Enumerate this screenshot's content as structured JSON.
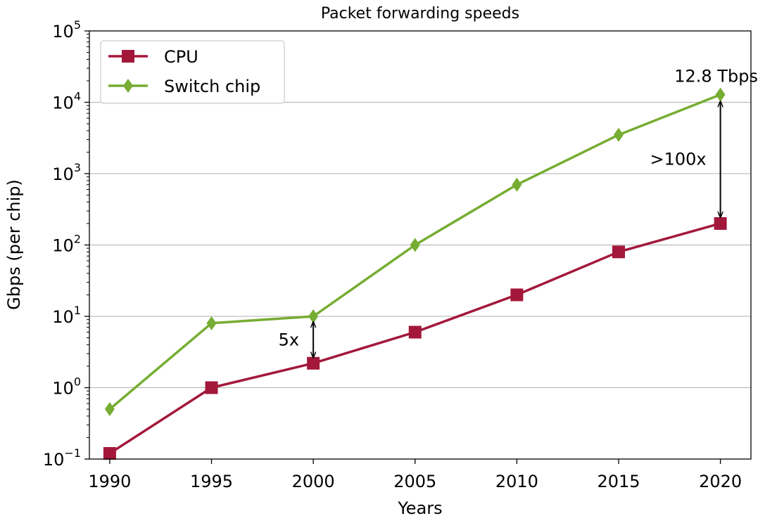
{
  "chart_data": {
    "type": "line",
    "title": "Packet forwarding speeds",
    "xlabel": "Years",
    "ylabel": "Gbps (per chip)",
    "x": [
      1990,
      1995,
      2000,
      2005,
      2010,
      2015,
      2020
    ],
    "xticks": [
      "1990",
      "1995",
      "2000",
      "2005",
      "2010",
      "2015",
      "2020"
    ],
    "xlim": [
      1989,
      2021.5
    ],
    "yscale": "log",
    "ylim": [
      0.1,
      100000
    ],
    "yticks": [
      {
        "base": "10",
        "exp": "−1",
        "value": 0.1
      },
      {
        "base": "10",
        "exp": "0",
        "value": 1
      },
      {
        "base": "10",
        "exp": "1",
        "value": 10
      },
      {
        "base": "10",
        "exp": "2",
        "value": 100
      },
      {
        "base": "10",
        "exp": "3",
        "value": 1000
      },
      {
        "base": "10",
        "exp": "4",
        "value": 10000
      },
      {
        "base": "10",
        "exp": "5",
        "value": 100000
      }
    ],
    "grid": "horizontal",
    "legend_position": "top-left",
    "series": [
      {
        "name": "CPU",
        "color": "#a3183a",
        "marker": "square",
        "values": [
          0.12,
          1.0,
          2.2,
          6.0,
          20,
          80,
          200
        ]
      },
      {
        "name": "Switch chip",
        "color": "#76ad32",
        "marker": "diamond",
        "values": [
          0.5,
          8,
          10,
          100,
          700,
          3500,
          12800
        ]
      }
    ],
    "annotations": [
      {
        "text": "5x",
        "x": 2000,
        "from": 2.6,
        "to": 8.5
      },
      {
        "text": ">100x",
        "x": 2020,
        "from": 240,
        "to": 10500
      },
      {
        "text": "12.8 Tbps",
        "x": 2020,
        "y": 12800
      }
    ]
  }
}
